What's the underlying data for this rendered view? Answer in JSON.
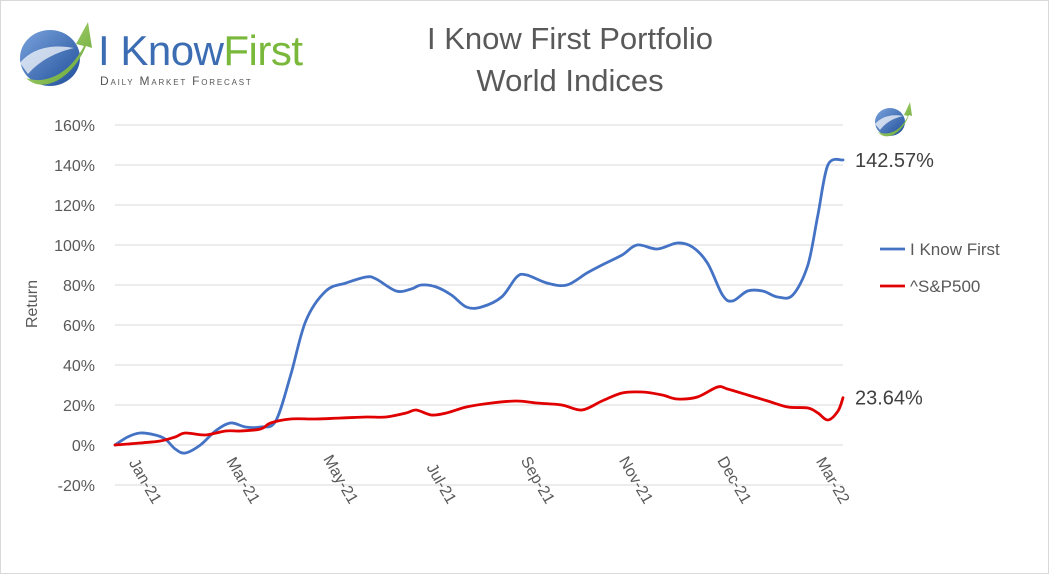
{
  "logo": {
    "word_part1": "I Know",
    "word_part2": "First",
    "tagline": "Daily Market Forecast"
  },
  "title": {
    "line1": "I Know First Portfolio",
    "line2": "World Indices"
  },
  "colors": {
    "ikf_series": "#4472c4",
    "sp500_series": "#e00000",
    "grid": "#d9d9d9",
    "text": "#595959",
    "logo_blue": "#3c6db3",
    "logo_green": "#79b83a"
  },
  "chart_data": {
    "type": "line",
    "title": "I Know First Portfolio World Indices",
    "xlabel": "",
    "ylabel": "Return",
    "ylim": [
      -20,
      160
    ],
    "y_ticks": [
      -20,
      0,
      20,
      40,
      60,
      80,
      100,
      120,
      140,
      160
    ],
    "y_tick_labels": [
      "-20%",
      "0%",
      "20%",
      "40%",
      "60%",
      "80%",
      "100%",
      "120%",
      "140%",
      "160%"
    ],
    "x_ticks": [
      "Jan-21",
      "Mar-21",
      "May-21",
      "Jul-21",
      "Sep-21",
      "Nov-21",
      "Dec-21",
      "Mar-22"
    ],
    "x_range_months": [
      0,
      14.5
    ],
    "grid": true,
    "legend_position": "right",
    "series": [
      {
        "name": "I Know First",
        "color": "#4472c4",
        "end_label": "142.57%",
        "points": [
          [
            0.0,
            0
          ],
          [
            0.25,
            4
          ],
          [
            0.5,
            6
          ],
          [
            0.8,
            5
          ],
          [
            1.0,
            3
          ],
          [
            1.2,
            -2
          ],
          [
            1.4,
            -4
          ],
          [
            1.7,
            0
          ],
          [
            2.0,
            7
          ],
          [
            2.3,
            11
          ],
          [
            2.6,
            9
          ],
          [
            2.9,
            9
          ],
          [
            3.2,
            12
          ],
          [
            3.5,
            35
          ],
          [
            3.8,
            62
          ],
          [
            4.2,
            77
          ],
          [
            4.6,
            81
          ],
          [
            5.0,
            84
          ],
          [
            5.2,
            83
          ],
          [
            5.6,
            77
          ],
          [
            5.9,
            78
          ],
          [
            6.1,
            80
          ],
          [
            6.4,
            79
          ],
          [
            6.7,
            75
          ],
          [
            7.0,
            69
          ],
          [
            7.3,
            69
          ],
          [
            7.7,
            74
          ],
          [
            8.0,
            84
          ],
          [
            8.2,
            85
          ],
          [
            8.6,
            81
          ],
          [
            9.0,
            80
          ],
          [
            9.4,
            86
          ],
          [
            9.7,
            90
          ],
          [
            10.1,
            95
          ],
          [
            10.4,
            100
          ],
          [
            10.8,
            98
          ],
          [
            11.2,
            101
          ],
          [
            11.5,
            99
          ],
          [
            11.8,
            91
          ],
          [
            12.1,
            75
          ],
          [
            12.3,
            72
          ],
          [
            12.6,
            77
          ],
          [
            12.9,
            77
          ],
          [
            13.2,
            74
          ],
          [
            13.5,
            75
          ],
          [
            13.8,
            90
          ],
          [
            14.0,
            115
          ],
          [
            14.2,
            140
          ],
          [
            14.5,
            142.57
          ]
        ]
      },
      {
        "name": "^S&P500",
        "color": "#e00000",
        "end_label": "23.64%",
        "points": [
          [
            0.0,
            0
          ],
          [
            0.5,
            1
          ],
          [
            0.9,
            2
          ],
          [
            1.2,
            4
          ],
          [
            1.4,
            6
          ],
          [
            1.8,
            5
          ],
          [
            2.2,
            7
          ],
          [
            2.5,
            7
          ],
          [
            2.9,
            8
          ],
          [
            3.1,
            11
          ],
          [
            3.5,
            13
          ],
          [
            4.0,
            13
          ],
          [
            4.5,
            13.5
          ],
          [
            5.0,
            14
          ],
          [
            5.4,
            14
          ],
          [
            5.8,
            16
          ],
          [
            6.0,
            17.5
          ],
          [
            6.3,
            15
          ],
          [
            6.6,
            16
          ],
          [
            7.0,
            19
          ],
          [
            7.5,
            21
          ],
          [
            8.0,
            22
          ],
          [
            8.4,
            21
          ],
          [
            8.9,
            20
          ],
          [
            9.3,
            17.5
          ],
          [
            9.7,
            22
          ],
          [
            10.1,
            26
          ],
          [
            10.5,
            26.5
          ],
          [
            10.9,
            25
          ],
          [
            11.2,
            23
          ],
          [
            11.6,
            24
          ],
          [
            12.0,
            29
          ],
          [
            12.2,
            28
          ],
          [
            12.6,
            25
          ],
          [
            13.0,
            22
          ],
          [
            13.4,
            19
          ],
          [
            13.8,
            18.5
          ],
          [
            14.0,
            16
          ],
          [
            14.2,
            12.5
          ],
          [
            14.4,
            17
          ],
          [
            14.5,
            23.64
          ]
        ]
      }
    ]
  }
}
